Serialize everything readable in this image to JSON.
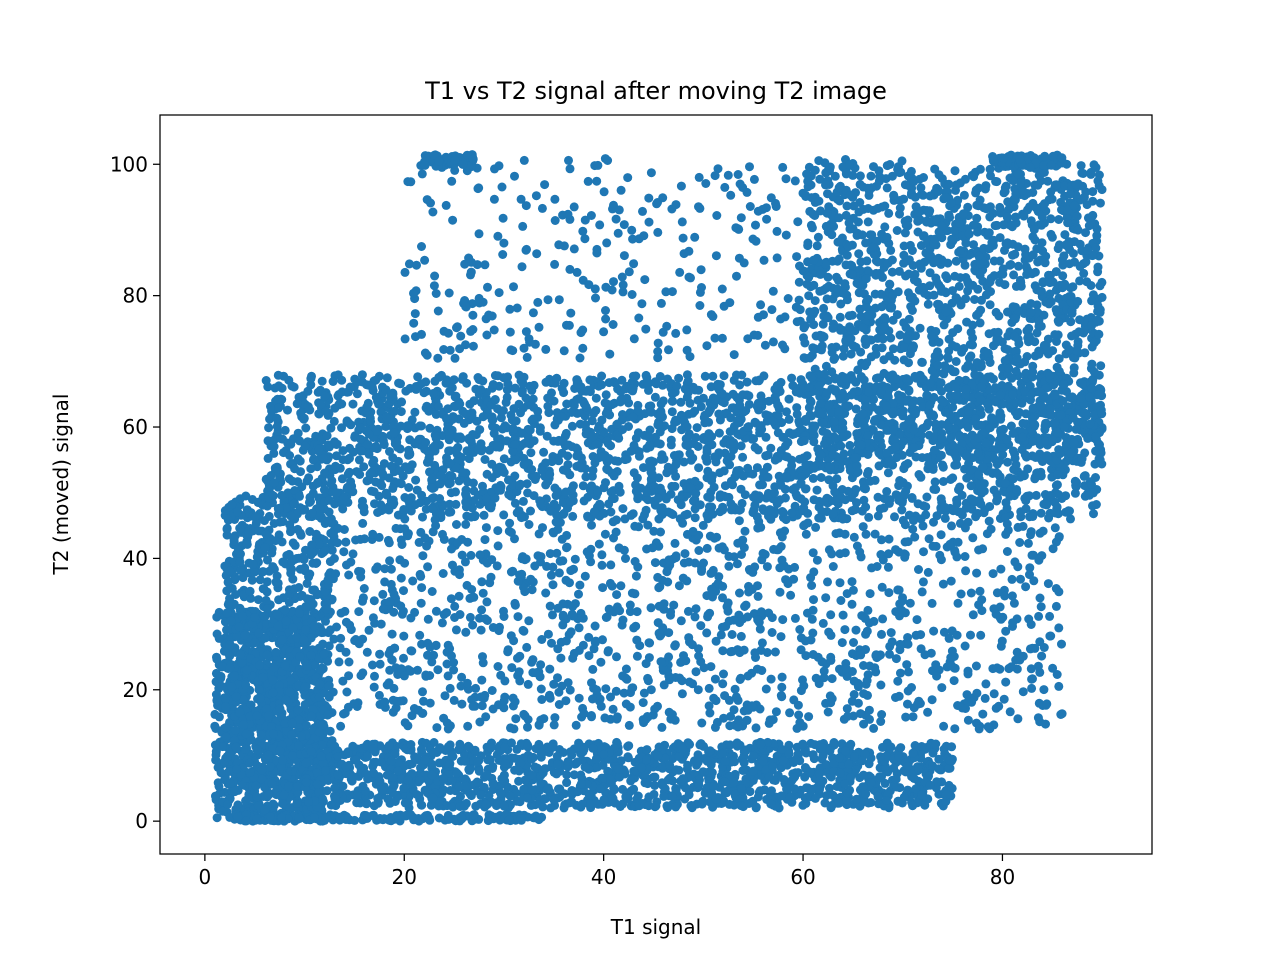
{
  "chart_data": {
    "type": "scatter",
    "title": "T1 vs T2 signal after moving T2 image",
    "xlabel": "T1 signal",
    "ylabel": "T2 (moved) signal",
    "xlim": [
      -4.5,
      95
    ],
    "ylim": [
      -5,
      107.5
    ],
    "xticks": [
      0,
      20,
      40,
      60,
      80
    ],
    "yticks": [
      0,
      20,
      40,
      60,
      80,
      100
    ],
    "xtick_labels": [
      "0",
      "20",
      "40",
      "60",
      "80"
    ],
    "ytick_labels": [
      "0",
      "20",
      "40",
      "60",
      "80",
      "100"
    ],
    "grid": false,
    "marker_color": "#1f77b4",
    "marker": "filled circle",
    "clusters": [
      {
        "x_range": [
          1,
          12
        ],
        "y_range": [
          0,
          32
        ]
      },
      {
        "x_range": [
          2,
          13
        ],
        "y_range": [
          5,
          50
        ]
      },
      {
        "x_range": [
          6,
          90
        ],
        "y_range": [
          46,
          68
        ]
      },
      {
        "x_range": [
          60,
          90
        ],
        "y_range": [
          55,
          100
        ]
      },
      {
        "x_range": [
          20,
          90
        ],
        "y_range": [
          70,
          101
        ]
      },
      {
        "x_range": [
          10,
          75
        ],
        "y_range": [
          2,
          12
        ]
      },
      {
        "x_range": [
          12,
          86
        ],
        "y_range": [
          14,
          46
        ]
      },
      {
        "x_range": [
          3,
          34
        ],
        "y_range": [
          0,
          1
        ]
      },
      {
        "x_range": [
          22,
          27
        ],
        "y_range": [
          99.5,
          101.5
        ]
      },
      {
        "x_range": [
          79,
          86
        ],
        "y_range": [
          99.5,
          101.5
        ]
      }
    ]
  }
}
